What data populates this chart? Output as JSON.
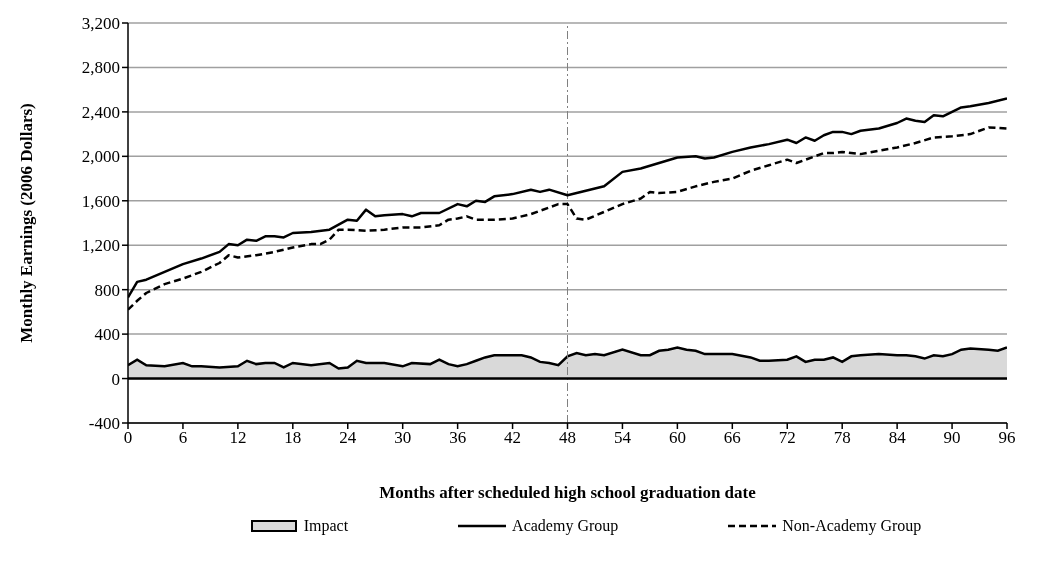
{
  "chart_data": {
    "type": "line",
    "xlabel": "Months after scheduled high school graduation date",
    "ylabel": "Monthly Earnings (2006 Dollars)",
    "xlim": [
      0,
      96
    ],
    "xticks": [
      0,
      6,
      12,
      18,
      24,
      30,
      36,
      42,
      48,
      54,
      60,
      66,
      72,
      78,
      84,
      90,
      96
    ],
    "ylim": [
      -400,
      3200
    ],
    "yticks": [
      -400,
      0,
      400,
      800,
      {
        "value": 1200,
        "label": "1,200"
      },
      {
        "value": 1600,
        "label": "1,600"
      },
      {
        "value": 2000,
        "label": "2,000"
      },
      {
        "value": 2400,
        "label": "2,400"
      },
      {
        "value": 2800,
        "label": "2,800"
      },
      {
        "value": 3200,
        "label": "3,200"
      }
    ],
    "grid": "y",
    "legend": "bottom",
    "marker": "none",
    "ref_lines": [
      {
        "axis": "x",
        "value": 48,
        "color": "#808080",
        "line_style": "dashdot"
      }
    ],
    "series": [
      {
        "name": "Impact",
        "type": "area",
        "color": "#d9d9d9",
        "x": [
          0,
          1,
          2,
          4,
          6,
          7,
          8,
          10,
          12,
          13,
          14,
          15,
          16,
          17,
          18,
          20,
          22,
          23,
          24,
          25,
          26,
          28,
          30,
          31,
          33,
          34,
          35,
          36,
          37,
          38,
          39,
          40,
          42,
          43,
          44,
          45,
          46,
          47,
          48,
          49,
          50,
          51,
          52,
          54,
          56,
          57,
          58,
          59,
          60,
          61,
          62,
          63,
          64,
          66,
          68,
          69,
          70,
          72,
          73,
          74,
          75,
          76,
          77,
          78,
          79,
          80,
          82,
          84,
          85,
          86,
          87,
          88,
          89,
          90,
          91,
          92,
          94,
          95,
          96
        ],
        "values": [
          120,
          170,
          120,
          110,
          140,
          110,
          110,
          100,
          110,
          160,
          130,
          140,
          140,
          100,
          140,
          120,
          140,
          90,
          100,
          160,
          140,
          140,
          110,
          140,
          130,
          170,
          130,
          110,
          130,
          160,
          190,
          210,
          210,
          210,
          190,
          150,
          140,
          120,
          200,
          230,
          210,
          220,
          210,
          260,
          210,
          210,
          250,
          260,
          280,
          260,
          250,
          220,
          220,
          220,
          190,
          160,
          160,
          170,
          200,
          150,
          170,
          170,
          190,
          150,
          200,
          210,
          220,
          210,
          210,
          200,
          180,
          210,
          200,
          220,
          260,
          270,
          260,
          250,
          280
        ]
      },
      {
        "name": "Academy Group",
        "line_style": "solid",
        "color": "#000000",
        "x": [
          0,
          1,
          2,
          4,
          6,
          8,
          10,
          11,
          12,
          13,
          14,
          15,
          16,
          17,
          18,
          20,
          22,
          24,
          25,
          26,
          27,
          28,
          30,
          31,
          32,
          34,
          36,
          37,
          38,
          39,
          40,
          42,
          44,
          45,
          46,
          48,
          50,
          52,
          54,
          56,
          58,
          60,
          62,
          63,
          64,
          66,
          68,
          70,
          72,
          73,
          74,
          75,
          76,
          77,
          78,
          79,
          80,
          82,
          84,
          85,
          86,
          87,
          88,
          89,
          90,
          91,
          92,
          94,
          96
        ],
        "values": [
          730,
          870,
          890,
          960,
          1030,
          1080,
          1140,
          1210,
          1200,
          1250,
          1240,
          1280,
          1280,
          1270,
          1310,
          1320,
          1340,
          1430,
          1420,
          1520,
          1460,
          1470,
          1480,
          1460,
          1490,
          1490,
          1570,
          1550,
          1600,
          1590,
          1640,
          1660,
          1700,
          1680,
          1700,
          1650,
          1690,
          1730,
          1860,
          1890,
          1940,
          1990,
          2000,
          1980,
          1990,
          2040,
          2080,
          2110,
          2150,
          2120,
          2170,
          2140,
          2190,
          2220,
          2220,
          2200,
          2230,
          2250,
          2300,
          2340,
          2320,
          2310,
          2370,
          2360,
          2400,
          2440,
          2450,
          2480,
          2520
        ]
      },
      {
        "name": "Non-Academy Group",
        "line_style": "dashed",
        "color": "#000000",
        "x": [
          0,
          1,
          2,
          4,
          6,
          8,
          10,
          11,
          12,
          14,
          16,
          18,
          20,
          21,
          22,
          23,
          24,
          26,
          28,
          30,
          32,
          34,
          35,
          36,
          37,
          38,
          40,
          42,
          44,
          46,
          47,
          48,
          49,
          50,
          52,
          54,
          56,
          57,
          58,
          60,
          62,
          64,
          66,
          68,
          70,
          72,
          73,
          74,
          76,
          77,
          78,
          80,
          82,
          84,
          86,
          88,
          90,
          92,
          94,
          96
        ],
        "values": [
          620,
          700,
          770,
          850,
          900,
          960,
          1040,
          1110,
          1090,
          1110,
          1140,
          1180,
          1210,
          1210,
          1250,
          1340,
          1340,
          1330,
          1340,
          1360,
          1360,
          1380,
          1430,
          1440,
          1460,
          1430,
          1430,
          1440,
          1480,
          1540,
          1570,
          1570,
          1440,
          1430,
          1500,
          1570,
          1620,
          1680,
          1670,
          1680,
          1730,
          1770,
          1800,
          1870,
          1920,
          1970,
          1940,
          1970,
          2030,
          2030,
          2040,
          2020,
          2050,
          2080,
          2120,
          2170,
          2180,
          2200,
          2260,
          2250
        ]
      }
    ]
  }
}
